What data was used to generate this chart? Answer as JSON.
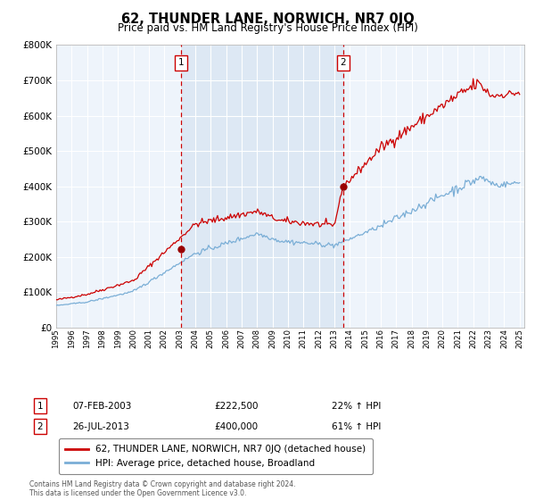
{
  "title": "62, THUNDER LANE, NORWICH, NR7 0JQ",
  "subtitle": "Price paid vs. HM Land Registry's House Price Index (HPI)",
  "title_fontsize": 10.5,
  "subtitle_fontsize": 8.5,
  "background_color": "#ffffff",
  "plot_bg_color": "#eef4fb",
  "shade_color": "#dde8f4",
  "grid_color": "#cccccc",
  "ylim": [
    0,
    800000
  ],
  "yticks": [
    0,
    100000,
    200000,
    300000,
    400000,
    500000,
    600000,
    700000,
    800000
  ],
  "ytick_labels": [
    "£0",
    "£100K",
    "£200K",
    "£300K",
    "£400K",
    "£500K",
    "£600K",
    "£700K",
    "£800K"
  ],
  "xlim_start": 1995,
  "xlim_end": 2025.3,
  "xtick_years": [
    1995,
    1996,
    1997,
    1998,
    1999,
    2000,
    2001,
    2002,
    2003,
    2004,
    2005,
    2006,
    2007,
    2008,
    2009,
    2010,
    2011,
    2012,
    2013,
    2014,
    2015,
    2016,
    2017,
    2018,
    2019,
    2020,
    2021,
    2022,
    2023,
    2024,
    2025
  ],
  "red_line_color": "#cc0000",
  "blue_line_color": "#7aaed6",
  "sale1_x": 2003.1,
  "sale1_y": 222500,
  "sale2_x": 2013.58,
  "sale2_y": 400000,
  "vline1_x": 2003.1,
  "vline2_x": 2013.58,
  "shade_start": 2003.1,
  "shade_end": 2013.58,
  "legend_red_label": "62, THUNDER LANE, NORWICH, NR7 0JQ (detached house)",
  "legend_blue_label": "HPI: Average price, detached house, Broadland",
  "annotation1_date": "07-FEB-2003",
  "annotation1_price": "£222,500",
  "annotation1_hpi": "22% ↑ HPI",
  "annotation2_date": "26-JUL-2013",
  "annotation2_price": "£400,000",
  "annotation2_hpi": "61% ↑ HPI",
  "footer": "Contains HM Land Registry data © Crown copyright and database right 2024.\nThis data is licensed under the Open Government Licence v3.0."
}
